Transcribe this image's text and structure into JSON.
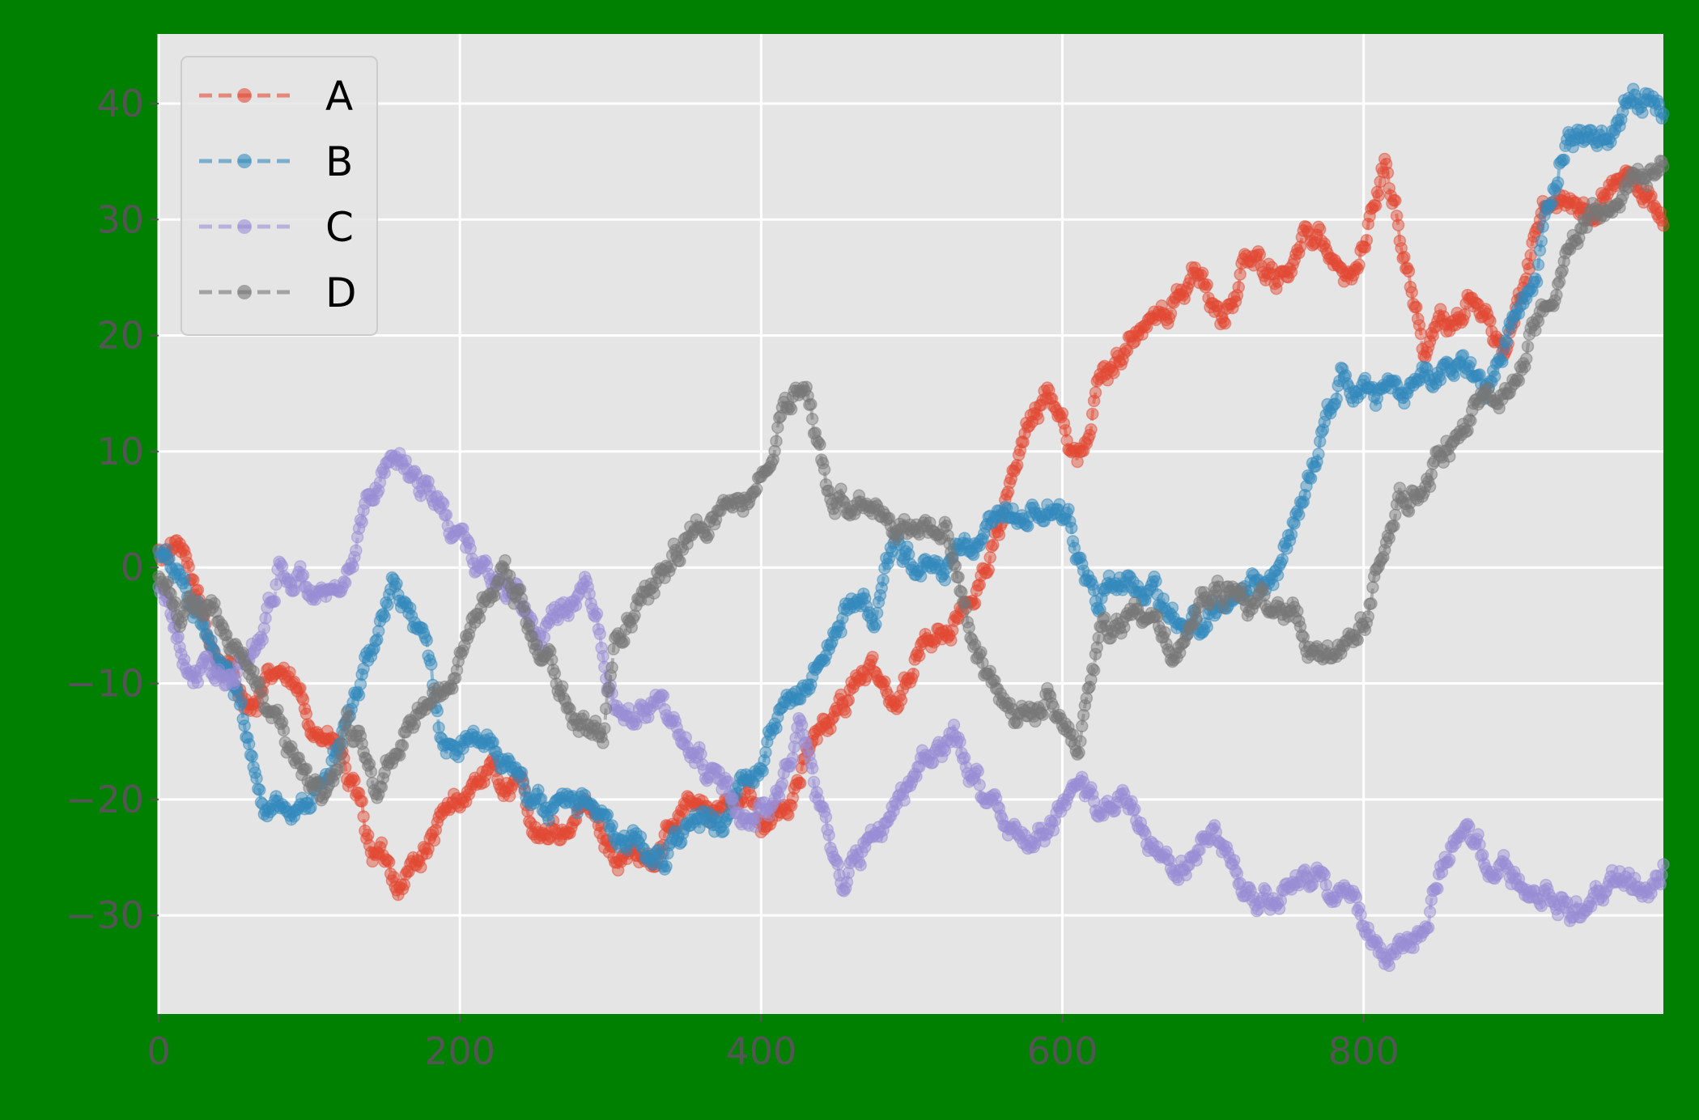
{
  "chart_data": {
    "type": "line",
    "title": "",
    "xlabel": "",
    "ylabel": "",
    "xlim": [
      0,
      999
    ],
    "ylim": [
      -38.5,
      46
    ],
    "x_ticks": [
      0,
      200,
      400,
      600,
      800
    ],
    "x_tick_labels": [
      "0",
      "200",
      "400",
      "600",
      "800"
    ],
    "y_ticks": [
      -30,
      -20,
      -10,
      0,
      10,
      20,
      30,
      40
    ],
    "y_tick_labels": [
      "−30",
      "−20",
      "−10",
      "0",
      "10",
      "20",
      "30",
      "40"
    ],
    "grid": true,
    "legend_position": "top-left",
    "n_points": 1000,
    "background_color": "#008000",
    "plot_area_color": "#e5e5e5",
    "grid_color": "#ffffff",
    "series": [
      {
        "name": "A",
        "color": "#e24a33",
        "keypoints": [
          [
            0,
            1
          ],
          [
            10,
            2
          ],
          [
            20,
            -1
          ],
          [
            40,
            -8
          ],
          [
            65,
            -12
          ],
          [
            80,
            -9
          ],
          [
            95,
            -12
          ],
          [
            120,
            -16
          ],
          [
            140,
            -24
          ],
          [
            160,
            -27
          ],
          [
            180,
            -24
          ],
          [
            200,
            -20
          ],
          [
            215,
            -18
          ],
          [
            240,
            -19
          ],
          [
            255,
            -24
          ],
          [
            285,
            -21
          ],
          [
            305,
            -25
          ],
          [
            330,
            -26
          ],
          [
            350,
            -19
          ],
          [
            370,
            -22
          ],
          [
            390,
            -18
          ],
          [
            400,
            -23
          ],
          [
            415,
            -21
          ],
          [
            430,
            -16
          ],
          [
            450,
            -13
          ],
          [
            465,
            -9
          ],
          [
            490,
            -11
          ],
          [
            510,
            -6
          ],
          [
            530,
            -5
          ],
          [
            545,
            -1
          ],
          [
            560,
            4
          ],
          [
            575,
            11
          ],
          [
            590,
            15
          ],
          [
            600,
            14
          ],
          [
            610,
            9
          ],
          [
            625,
            16
          ],
          [
            645,
            20
          ],
          [
            670,
            22
          ],
          [
            690,
            26
          ],
          [
            705,
            21
          ],
          [
            725,
            27
          ],
          [
            745,
            25
          ],
          [
            770,
            30
          ],
          [
            790,
            24
          ],
          [
            815,
            35
          ],
          [
            840,
            19
          ],
          [
            870,
            23
          ],
          [
            895,
            19
          ],
          [
            925,
            33
          ],
          [
            945,
            30
          ],
          [
            970,
            33
          ],
          [
            999,
            29
          ]
        ]
      },
      {
        "name": "B",
        "color": "#348abd",
        "keypoints": [
          [
            0,
            1
          ],
          [
            15,
            -1
          ],
          [
            35,
            -6
          ],
          [
            55,
            -12
          ],
          [
            70,
            -21
          ],
          [
            90,
            -20
          ],
          [
            110,
            -19
          ],
          [
            130,
            -12
          ],
          [
            155,
            -2
          ],
          [
            175,
            -6
          ],
          [
            190,
            -16
          ],
          [
            215,
            -15
          ],
          [
            235,
            -17
          ],
          [
            255,
            -21
          ],
          [
            275,
            -19
          ],
          [
            300,
            -23
          ],
          [
            330,
            -25
          ],
          [
            350,
            -23
          ],
          [
            380,
            -21
          ],
          [
            400,
            -16
          ],
          [
            420,
            -12
          ],
          [
            445,
            -7
          ],
          [
            460,
            -3
          ],
          [
            475,
            -4
          ],
          [
            490,
            2
          ],
          [
            515,
            -1
          ],
          [
            545,
            2
          ],
          [
            565,
            4
          ],
          [
            590,
            5
          ],
          [
            605,
            3
          ],
          [
            625,
            -3
          ],
          [
            645,
            -1
          ],
          [
            665,
            -3
          ],
          [
            690,
            -5
          ],
          [
            715,
            -1
          ],
          [
            740,
            -1
          ],
          [
            765,
            8
          ],
          [
            785,
            17
          ],
          [
            810,
            15
          ],
          [
            835,
            16
          ],
          [
            860,
            18
          ],
          [
            880,
            15
          ],
          [
            915,
            26
          ],
          [
            935,
            38
          ],
          [
            960,
            37
          ],
          [
            980,
            41
          ],
          [
            999,
            40
          ]
        ]
      },
      {
        "name": "C",
        "color": "#988ed5",
        "keypoints": [
          [
            0,
            -2
          ],
          [
            20,
            -8
          ],
          [
            45,
            -10
          ],
          [
            65,
            -7
          ],
          [
            80,
            0
          ],
          [
            100,
            -2
          ],
          [
            120,
            -4
          ],
          [
            140,
            6
          ],
          [
            155,
            10
          ],
          [
            180,
            7
          ],
          [
            200,
            2
          ],
          [
            225,
            -1
          ],
          [
            255,
            -6
          ],
          [
            285,
            -1
          ],
          [
            305,
            -12
          ],
          [
            330,
            -12
          ],
          [
            355,
            -16
          ],
          [
            375,
            -19
          ],
          [
            395,
            -22
          ],
          [
            410,
            -20
          ],
          [
            425,
            -14
          ],
          [
            440,
            -21
          ],
          [
            455,
            -27
          ],
          [
            480,
            -22
          ],
          [
            500,
            -18
          ],
          [
            530,
            -15
          ],
          [
            550,
            -20
          ],
          [
            580,
            -24
          ],
          [
            605,
            -21
          ],
          [
            640,
            -20
          ],
          [
            675,
            -27
          ],
          [
            700,
            -23
          ],
          [
            730,
            -29
          ],
          [
            760,
            -27
          ],
          [
            790,
            -28
          ],
          [
            810,
            -33
          ],
          [
            835,
            -32
          ],
          [
            860,
            -23
          ],
          [
            885,
            -26
          ],
          [
            920,
            -28
          ],
          [
            950,
            -30
          ],
          [
            975,
            -27
          ],
          [
            999,
            -26
          ]
        ]
      },
      {
        "name": "D",
        "color": "#777777",
        "keypoints": [
          [
            0,
            -1
          ],
          [
            15,
            -5
          ],
          [
            35,
            -3
          ],
          [
            55,
            -8
          ],
          [
            75,
            -12
          ],
          [
            95,
            -17
          ],
          [
            110,
            -21
          ],
          [
            125,
            -13
          ],
          [
            145,
            -19
          ],
          [
            165,
            -13
          ],
          [
            195,
            -10
          ],
          [
            210,
            -5
          ],
          [
            230,
            0
          ],
          [
            255,
            -7
          ],
          [
            275,
            -12
          ],
          [
            295,
            -14
          ],
          [
            305,
            -5
          ],
          [
            330,
            -2
          ],
          [
            350,
            3
          ],
          [
            375,
            5
          ],
          [
            395,
            7
          ],
          [
            415,
            13
          ],
          [
            430,
            16
          ],
          [
            445,
            6
          ],
          [
            470,
            5
          ],
          [
            500,
            4
          ],
          [
            525,
            3
          ],
          [
            545,
            -8
          ],
          [
            570,
            -14
          ],
          [
            590,
            -11
          ],
          [
            610,
            -15
          ],
          [
            625,
            -6
          ],
          [
            650,
            -4
          ],
          [
            675,
            -8
          ],
          [
            700,
            -1
          ],
          [
            725,
            -3
          ],
          [
            750,
            -3
          ],
          [
            775,
            -8
          ],
          [
            800,
            -5
          ],
          [
            820,
            5
          ],
          [
            850,
            9
          ],
          [
            875,
            13
          ],
          [
            900,
            17
          ],
          [
            925,
            24
          ],
          [
            945,
            29
          ],
          [
            965,
            31
          ],
          [
            999,
            35
          ]
        ]
      }
    ]
  }
}
